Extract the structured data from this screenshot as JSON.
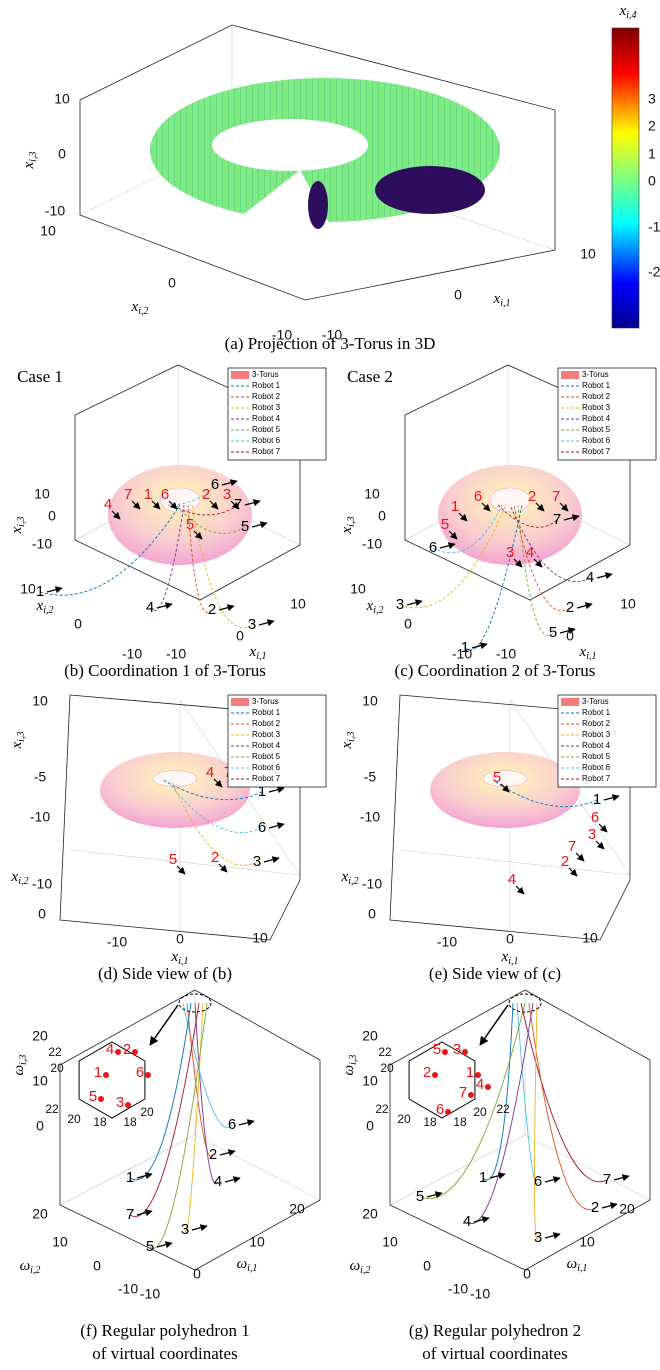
{
  "projection": {
    "caption": "(a) Projection of 3-Torus in 3D",
    "z_label": {
      "base": "x",
      "sub": "i,3"
    },
    "y_label": {
      "base": "x",
      "sub": "i,2"
    },
    "x_label": {
      "base": "x",
      "sub": "i,1"
    },
    "z_ticks": [
      10,
      0,
      -10
    ],
    "y_ticks": [
      10,
      0,
      -10
    ],
    "x_ticks": [
      -10,
      0,
      10
    ],
    "colorbar": {
      "label": {
        "base": "x",
        "sub": "i,4"
      },
      "ticks": [
        3,
        2,
        1,
        0,
        -1,
        -2
      ]
    }
  },
  "panels": [
    {
      "caption": [
        "(b) Coordination 1 of 3-Torus"
      ],
      "case": "Case 1",
      "legend": {
        "entries": [
          "3-Torus",
          "Robot 1",
          "Robot 2",
          "Robot 3",
          "Robot 4",
          "Robot 5",
          "Robot 6",
          "Robot 7"
        ],
        "colors": [
          "#f47c7c",
          "#0072bd",
          "#d95319",
          "#edb120",
          "#7e2f8e",
          "#77ac30",
          "#4dbeee",
          "#a2142f"
        ]
      },
      "z_label": {
        "base": "x",
        "sub": "i,3"
      },
      "y_label": {
        "base": "x",
        "sub": "i,2"
      },
      "x_label": {
        "base": "x",
        "sub": "i,1"
      },
      "z_ticks": [
        10,
        0,
        -10
      ],
      "y_ticks": [
        10,
        0,
        -10
      ],
      "x_ticks": [
        -10,
        0,
        10
      ],
      "red_labels": [
        7,
        1,
        6,
        2,
        3,
        4,
        5
      ],
      "black_labels": [
        6,
        7,
        5,
        1,
        4,
        2,
        3
      ]
    },
    {
      "caption": [
        "(c) Coordination 2 of 3-Torus"
      ],
      "case": "Case 2",
      "legend": {
        "entries": [
          "3-Torus",
          "Robot 1",
          "Robot 2",
          "Robot 3",
          "Robot 4",
          "Robot 5",
          "Robot 6",
          "Robot 7"
        ],
        "colors": [
          "#f47c7c",
          "#0072bd",
          "#d95319",
          "#edb120",
          "#7e2f8e",
          "#77ac30",
          "#4dbeee",
          "#a2142f"
        ]
      },
      "z_label": {
        "base": "x",
        "sub": "i,3"
      },
      "y_label": {
        "base": "x",
        "sub": "i,2"
      },
      "x_label": {
        "base": "x",
        "sub": "i,1"
      },
      "z_ticks": [
        10,
        0,
        -10
      ],
      "y_ticks": [
        10,
        0,
        -10
      ],
      "x_ticks": [
        -10,
        0,
        10
      ],
      "red_labels": [
        1,
        6,
        2,
        7,
        5,
        3,
        4
      ],
      "black_labels": [
        7,
        6,
        3,
        4,
        2,
        5,
        1
      ]
    },
    {
      "caption": [
        "(d) Side view of (b)"
      ],
      "legend": {
        "entries": [
          "3-Torus",
          "Robot 1",
          "Robot 2",
          "Robot 3",
          "Robot 4",
          "Robot 5",
          "Robot 6",
          "Robot 7"
        ],
        "colors": [
          "#f47c7c",
          "#0072bd",
          "#d95319",
          "#edb120",
          "#7e2f8e",
          "#77ac30",
          "#4dbeee",
          "#a2142f"
        ]
      },
      "z_label": {
        "base": "x",
        "sub": "i,3"
      },
      "y_label": {
        "base": "x",
        "sub": "i,2"
      },
      "x_label": {
        "base": "x",
        "sub": "i,1"
      },
      "z_ticks": [
        10,
        -5,
        -10
      ],
      "y_ticks": [
        -10,
        0
      ],
      "x_ticks": [
        -10,
        0,
        10
      ],
      "red_labels": [
        4,
        7,
        5,
        2
      ],
      "black_labels": [
        1,
        6,
        3
      ]
    },
    {
      "caption": [
        "(e) Side view of (c)"
      ],
      "legend": {
        "entries": [
          "3-Torus",
          "Robot 1",
          "Robot 2",
          "Robot 3",
          "Robot 4",
          "Robot 5",
          "Robot 6",
          "Robot 7"
        ],
        "colors": [
          "#f47c7c",
          "#0072bd",
          "#d95319",
          "#edb120",
          "#7e2f8e",
          "#77ac30",
          "#4dbeee",
          "#a2142f"
        ]
      },
      "z_label": {
        "base": "x",
        "sub": "i,3"
      },
      "y_label": {
        "base": "x",
        "sub": "i,2"
      },
      "x_label": {
        "base": "x",
        "sub": "i,1"
      },
      "z_ticks": [
        10,
        -5,
        -10
      ],
      "y_ticks": [
        -10,
        0
      ],
      "x_ticks": [
        -10,
        0,
        10
      ],
      "red_labels": [
        5,
        6,
        3,
        7,
        2,
        4
      ],
      "black_labels": [
        1
      ]
    },
    {
      "caption": [
        "(f) Regular polyhedron 1",
        "of virtual coordinates"
      ],
      "z_label": {
        "base": "ω",
        "sub": "i,3"
      },
      "y_label": {
        "base": "ω",
        "sub": "i,2"
      },
      "x_label": {
        "base": "ω",
        "sub": "i,1"
      },
      "z_ticks": [
        20,
        10,
        0
      ],
      "y_ticks": [
        20,
        10,
        0,
        -10
      ],
      "x_ticks": [
        -10,
        0,
        10,
        20
      ],
      "inset_ticks": [
        22,
        20,
        22,
        20,
        18,
        18,
        20
      ],
      "red_labels": [
        4,
        2,
        1,
        6,
        5,
        3
      ],
      "black_labels": [
        6,
        2,
        1,
        4,
        7,
        3,
        5
      ]
    },
    {
      "caption": [
        "(g) Regular polyhedron 2",
        "of virtual coordinates"
      ],
      "z_label": {
        "base": "ω",
        "sub": "i,3"
      },
      "y_label": {
        "base": "ω",
        "sub": "i,2"
      },
      "x_label": {
        "base": "ω",
        "sub": "i,1"
      },
      "z_ticks": [
        20,
        10,
        0
      ],
      "y_ticks": [
        20,
        10,
        0,
        -10
      ],
      "x_ticks": [
        -10,
        0,
        10,
        20
      ],
      "inset_ticks": [
        22,
        20,
        22,
        20,
        18,
        18,
        20,
        22
      ],
      "red_labels": [
        5,
        3,
        2,
        1,
        4,
        7,
        6
      ],
      "black_labels": [
        1,
        6,
        7,
        5,
        2,
        4,
        3
      ]
    }
  ]
}
